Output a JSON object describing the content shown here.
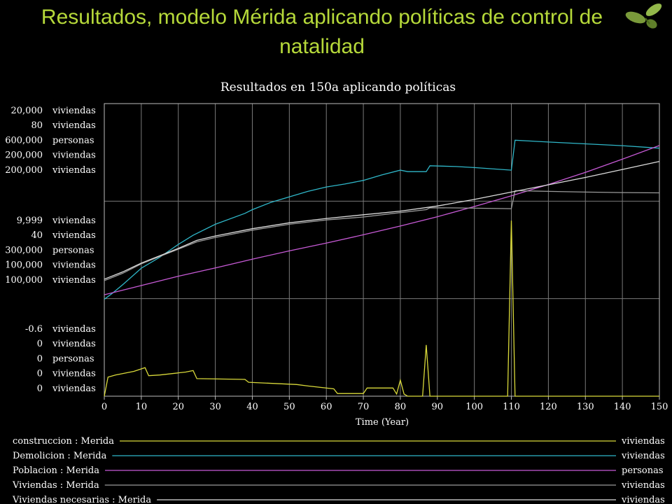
{
  "slide": {
    "title": "Resultados, modelo Mérida aplicando políticas de control de natalidad"
  },
  "colors": {
    "accent_title": "#b6d93a",
    "construccion": "#d9d93a",
    "demolicion": "#2fb7c9",
    "poblacion": "#c75ad6",
    "viviendas": "#9a9a9a",
    "viviendas_necesarias": "#dcdcdc"
  },
  "chart_data": {
    "type": "line",
    "title": "Resultados en 150a aplicando políticas",
    "xlabel": "Time (Year)",
    "xlim": [
      0,
      150
    ],
    "x_ticks": [
      "0",
      "10",
      "20",
      "30",
      "40",
      "50",
      "60",
      "70",
      "80",
      "90",
      "100",
      "110",
      "120",
      "130",
      "140",
      "150"
    ],
    "grid": true,
    "y_scale_groups": [
      {
        "labels": [
          {
            "value": "20,000",
            "unit": "viviendas"
          },
          {
            "value": "80",
            "unit": "viviendas"
          },
          {
            "value": "600,000",
            "unit": "personas"
          },
          {
            "value": "200,000",
            "unit": "viviendas"
          },
          {
            "value": "200,000",
            "unit": "viviendas"
          }
        ]
      },
      {
        "labels": [
          {
            "value": "9,999",
            "unit": "viviendas"
          },
          {
            "value": "40",
            "unit": "viviendas"
          },
          {
            "value": "300,000",
            "unit": "personas"
          },
          {
            "value": "100,000",
            "unit": "viviendas"
          },
          {
            "value": "100,000",
            "unit": "viviendas"
          }
        ]
      },
      {
        "labels": [
          {
            "value": "-0.6",
            "unit": "viviendas"
          },
          {
            "value": "0",
            "unit": "viviendas"
          },
          {
            "value": "0",
            "unit": "personas"
          },
          {
            "value": "0",
            "unit": "viviendas"
          },
          {
            "value": "0",
            "unit": "viviendas"
          }
        ]
      }
    ],
    "series": [
      {
        "name": "construccion : Merida",
        "unit": "viviendas",
        "color_key": "construccion",
        "ymin": -0.6,
        "ymax": 20000,
        "points": [
          [
            0,
            0
          ],
          [
            1,
            1300
          ],
          [
            3,
            1450
          ],
          [
            8,
            1700
          ],
          [
            11,
            1950
          ],
          [
            12,
            1400
          ],
          [
            15,
            1450
          ],
          [
            22,
            1650
          ],
          [
            24,
            1750
          ],
          [
            25,
            1200
          ],
          [
            38,
            1150
          ],
          [
            39,
            950
          ],
          [
            52,
            800
          ],
          [
            55,
            700
          ],
          [
            62,
            500
          ],
          [
            63,
            180
          ],
          [
            70,
            180
          ],
          [
            71,
            560
          ],
          [
            78,
            560
          ],
          [
            79,
            150
          ],
          [
            80,
            1100
          ],
          [
            81,
            150
          ],
          [
            82,
            0
          ],
          [
            86,
            0
          ],
          [
            87,
            3500
          ],
          [
            88,
            0
          ],
          [
            109,
            0
          ],
          [
            110,
            12000
          ],
          [
            111,
            0
          ],
          [
            150,
            0
          ]
        ]
      },
      {
        "name": "Demolicion : Merida",
        "unit": "viviendas",
        "color_key": "demolicion",
        "ymin": 0,
        "ymax": 80,
        "points": [
          [
            0,
            26.5
          ],
          [
            2,
            28
          ],
          [
            5,
            30.5
          ],
          [
            10,
            35
          ],
          [
            15,
            38
          ],
          [
            20,
            41.5
          ],
          [
            24,
            44
          ],
          [
            30,
            47
          ],
          [
            38,
            50
          ],
          [
            40,
            51
          ],
          [
            45,
            53
          ],
          [
            50,
            54.5
          ],
          [
            55,
            56
          ],
          [
            60,
            57.2
          ],
          [
            65,
            58
          ],
          [
            70,
            59
          ],
          [
            75,
            60.5
          ],
          [
            80,
            61.8
          ],
          [
            82,
            61.4
          ],
          [
            87,
            61.4
          ],
          [
            88,
            63
          ],
          [
            95,
            62.8
          ],
          [
            100,
            62.5
          ],
          [
            110,
            61.8
          ],
          [
            111,
            70
          ],
          [
            120,
            69.5
          ],
          [
            130,
            69
          ],
          [
            140,
            68.5
          ],
          [
            150,
            67.8
          ]
        ]
      },
      {
        "name": "Poblacion : Merida",
        "unit": "personas",
        "color_key": "poblacion",
        "ymin": 0,
        "ymax": 600000,
        "points": [
          [
            0,
            208000
          ],
          [
            10,
            227000
          ],
          [
            20,
            246000
          ],
          [
            30,
            263000
          ],
          [
            40,
            281000
          ],
          [
            50,
            298000
          ],
          [
            60,
            314000
          ],
          [
            70,
            331000
          ],
          [
            80,
            349000
          ],
          [
            90,
            368000
          ],
          [
            100,
            389000
          ],
          [
            110,
            411000
          ],
          [
            120,
            434000
          ],
          [
            130,
            459000
          ],
          [
            140,
            486000
          ],
          [
            150,
            514000
          ]
        ]
      },
      {
        "name": "Viviendas : Merida",
        "unit": "viviendas",
        "color_key": "viviendas",
        "ymin": 0,
        "ymax": 200000,
        "points": [
          [
            0,
            79000
          ],
          [
            5,
            84000
          ],
          [
            10,
            90500
          ],
          [
            15,
            95500
          ],
          [
            20,
            100500
          ],
          [
            25,
            105500
          ],
          [
            30,
            108500
          ],
          [
            40,
            113500
          ],
          [
            50,
            117500
          ],
          [
            60,
            120500
          ],
          [
            70,
            122500
          ],
          [
            80,
            125500
          ],
          [
            87,
            127500
          ],
          [
            88,
            128800
          ],
          [
            95,
            128700
          ],
          [
            110,
            128200
          ],
          [
            111,
            140500
          ],
          [
            120,
            140000
          ],
          [
            130,
            139500
          ],
          [
            140,
            139200
          ],
          [
            150,
            139000
          ]
        ]
      },
      {
        "name": "Viviendas necesarias : Merida",
        "unit": "viviendas",
        "color_key": "viviendas_necesarias",
        "ymin": 0,
        "ymax": 200000,
        "points": [
          [
            0,
            80000
          ],
          [
            5,
            85000
          ],
          [
            10,
            91000
          ],
          [
            15,
            96000
          ],
          [
            20,
            101000
          ],
          [
            25,
            106500
          ],
          [
            30,
            109500
          ],
          [
            40,
            114500
          ],
          [
            50,
            118500
          ],
          [
            60,
            121500
          ],
          [
            70,
            124000
          ],
          [
            80,
            126500
          ],
          [
            90,
            130000
          ],
          [
            100,
            134500
          ],
          [
            110,
            139500
          ],
          [
            120,
            144500
          ],
          [
            130,
            149500
          ],
          [
            140,
            155000
          ],
          [
            150,
            160500
          ]
        ]
      }
    ],
    "legend": [
      {
        "label": "construccion : Merida",
        "unit": "viviendas",
        "color_key": "construccion"
      },
      {
        "label": "Demolicion : Merida",
        "unit": "viviendas",
        "color_key": "demolicion"
      },
      {
        "label": "Poblacion : Merida",
        "unit": "personas",
        "color_key": "poblacion"
      },
      {
        "label": "Viviendas : Merida",
        "unit": "viviendas",
        "color_key": "viviendas"
      },
      {
        "label": "Viviendas necesarias : Merida",
        "unit": "viviendas",
        "color_key": "viviendas_necesarias"
      }
    ]
  }
}
